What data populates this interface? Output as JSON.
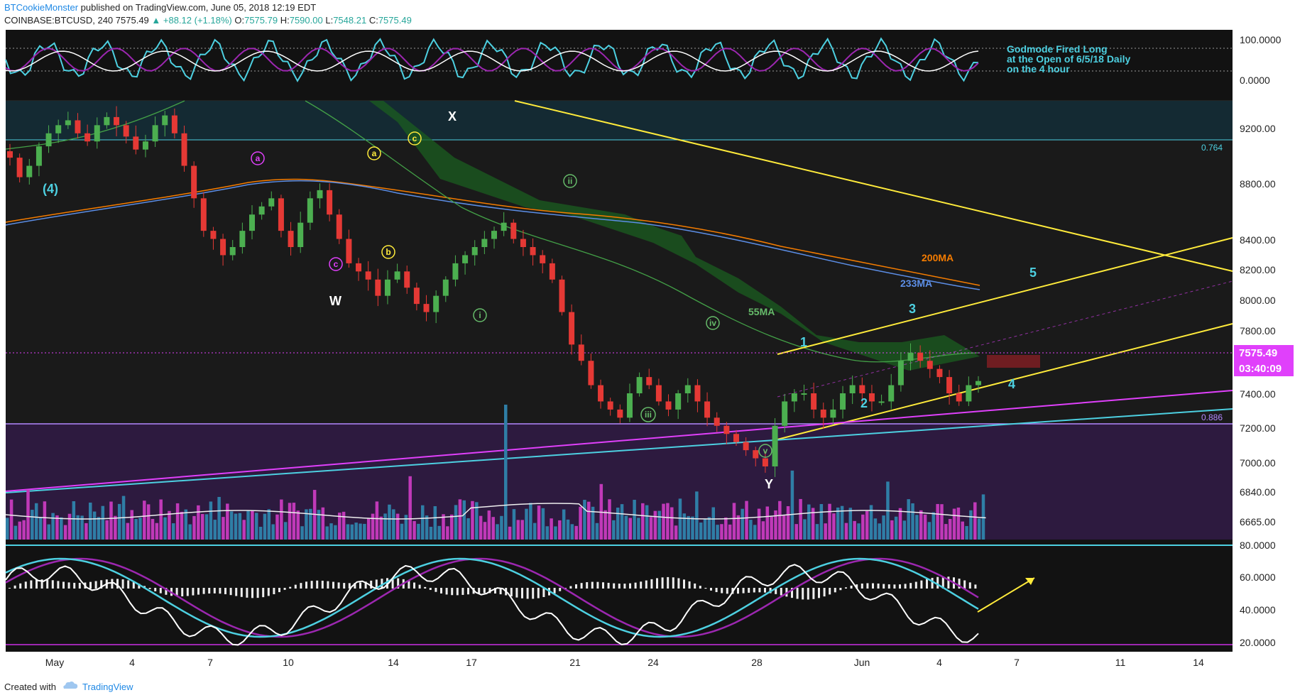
{
  "header": {
    "author": "BTCookieMonster",
    "published_text": "published on TradingView.com, June 05, 2018 12:19 EDT",
    "symbol": "COINBASE:BTCUSD, 240",
    "last": "7575.49",
    "change": "▲ +88.12 (+1.18%)",
    "o_label": "O:",
    "o_value": "7575.79",
    "h_label": "H:",
    "h_value": "7590.00",
    "l_label": "L:",
    "l_value": "7548.21",
    "c_label": "C:",
    "c_value": "7575.49"
  },
  "footer": {
    "created_with": "Created with",
    "brand": "TradingView"
  },
  "colors": {
    "background": "#1a1a1a",
    "up": "#4caf50",
    "down": "#e53935",
    "cyan": "#4dd0e1",
    "magenta": "#e040fb",
    "yellow": "#ffeb3b",
    "purple_zone": "#2d1a3f",
    "ma200": "#f57c00",
    "ma233": "#5c8ee6",
    "ma55": "#43a047"
  },
  "chart_data": [
    {
      "type": "line",
      "panel": "oscillator-top",
      "y_ticks": [
        "100.0000",
        "0.0000"
      ],
      "annotation": [
        "Godmode Fired Long",
        "at the Open of 6/5/18 Daily",
        "on the 4 hour"
      ]
    },
    {
      "type": "candlestick",
      "panel": "price",
      "y_ticks": [
        "9200.00",
        "8800.00",
        "8400.00",
        "8200.00",
        "8000.00",
        "7800.00",
        "7400.00",
        "7200.00",
        "7000.00",
        "6840.00",
        "6665.00"
      ],
      "ylim": [
        6600,
        9300
      ],
      "x_ticks": [
        "May",
        "4",
        "7",
        "10",
        "14",
        "17",
        "21",
        "24",
        "28",
        "Jun",
        "4",
        "7",
        "11",
        "14"
      ],
      "last_price_label": "7575.49",
      "countdown_label": "03:40:09",
      "fib_levels": [
        {
          "label": "0.764",
          "value": 8900
        },
        {
          "label": "0.886",
          "value": 7150
        }
      ],
      "ma_labels": [
        "200MA",
        "233MA",
        "55MA"
      ],
      "wave_labels_large": [
        "W",
        "X",
        "Y"
      ],
      "wave_labels_count": [
        "(4)",
        "1",
        "2",
        "3",
        "4",
        "5"
      ],
      "wave_labels_circled_minor": [
        "a",
        "b",
        "c"
      ],
      "wave_labels_circled_roman": [
        "i",
        "ii",
        "iii",
        "iv",
        "v"
      ],
      "wave_labels_circled_magenta": [
        "a",
        "c"
      ],
      "close_series": [
        8950,
        8830,
        8900,
        9020,
        9100,
        9150,
        9180,
        9100,
        9050,
        9150,
        9200,
        9150,
        9080,
        9000,
        9050,
        9150,
        9210,
        9100,
        8900,
        8700,
        8500,
        8450,
        8350,
        8400,
        8500,
        8600,
        8650,
        8700,
        8500,
        8400,
        8550,
        8700,
        8750,
        8600,
        8450,
        8300,
        8250,
        8200,
        8100,
        8200,
        8250,
        8150,
        8050,
        8000,
        8100,
        8200,
        8300,
        8350,
        8400,
        8450,
        8500,
        8550,
        8450,
        8400,
        8350,
        8300,
        8200,
        8000,
        7800,
        7700,
        7550,
        7450,
        7400,
        7350,
        7500,
        7600,
        7550,
        7450,
        7400,
        7500,
        7550,
        7450,
        7350,
        7300,
        7250,
        7200,
        7150,
        7100,
        7050,
        7300,
        7450,
        7500,
        7500,
        7400,
        7350,
        7400,
        7500,
        7550,
        7500,
        7450,
        7450,
        7550,
        7700,
        7750,
        7700,
        7650,
        7600,
        7500,
        7450,
        7550,
        7575.49
      ]
    },
    {
      "type": "line",
      "panel": "oscillator-bottom",
      "y_ticks": [
        "80.0000",
        "60.0000",
        "40.0000",
        "20.0000"
      ],
      "ylim": [
        15,
        85
      ]
    }
  ]
}
